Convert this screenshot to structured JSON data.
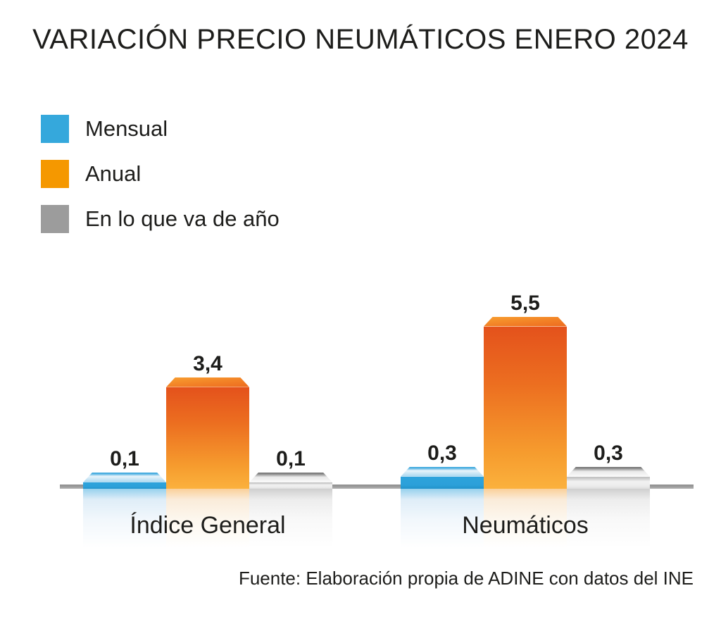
{
  "title": "VARIACIÓN PRECIO NEUMÁTICOS ENERO 2024",
  "legend": {
    "items": [
      {
        "label": "Mensual",
        "color": "#35A8DC"
      },
      {
        "label": "Anual",
        "color": "#F59800"
      },
      {
        "label": "En lo que va de año",
        "color": "#9C9C9C"
      }
    ]
  },
  "chart_data": {
    "type": "bar",
    "title": "VARIACIÓN PRECIO NEUMÁTICOS ENERO 2024",
    "categories": [
      "Índice General",
      "Neumáticos"
    ],
    "series": [
      {
        "name": "Mensual",
        "values": [
          0.1,
          0.3
        ],
        "labels": [
          "0,1",
          "0,3"
        ],
        "color": "#35A8DC"
      },
      {
        "name": "Anual",
        "values": [
          3.4,
          5.5
        ],
        "labels": [
          "3,4",
          "5,5"
        ],
        "color": "#F59800"
      },
      {
        "name": "En lo que va de año",
        "values": [
          0.1,
          0.3
        ],
        "labels": [
          "0,1",
          "0,3"
        ],
        "color": "#9C9C9C"
      }
    ],
    "xlabel": "",
    "ylabel": "",
    "ylim": [
      0,
      6
    ],
    "grid": false,
    "axes_visible": false,
    "baseline_color": "#9B9B9B",
    "legend_position": "top-left",
    "value_label_format": "comma-decimal",
    "style": "3d-beveled-bars-with-reflection"
  },
  "source": "Fuente: Elaboración propia de ADINE con datos del INE"
}
